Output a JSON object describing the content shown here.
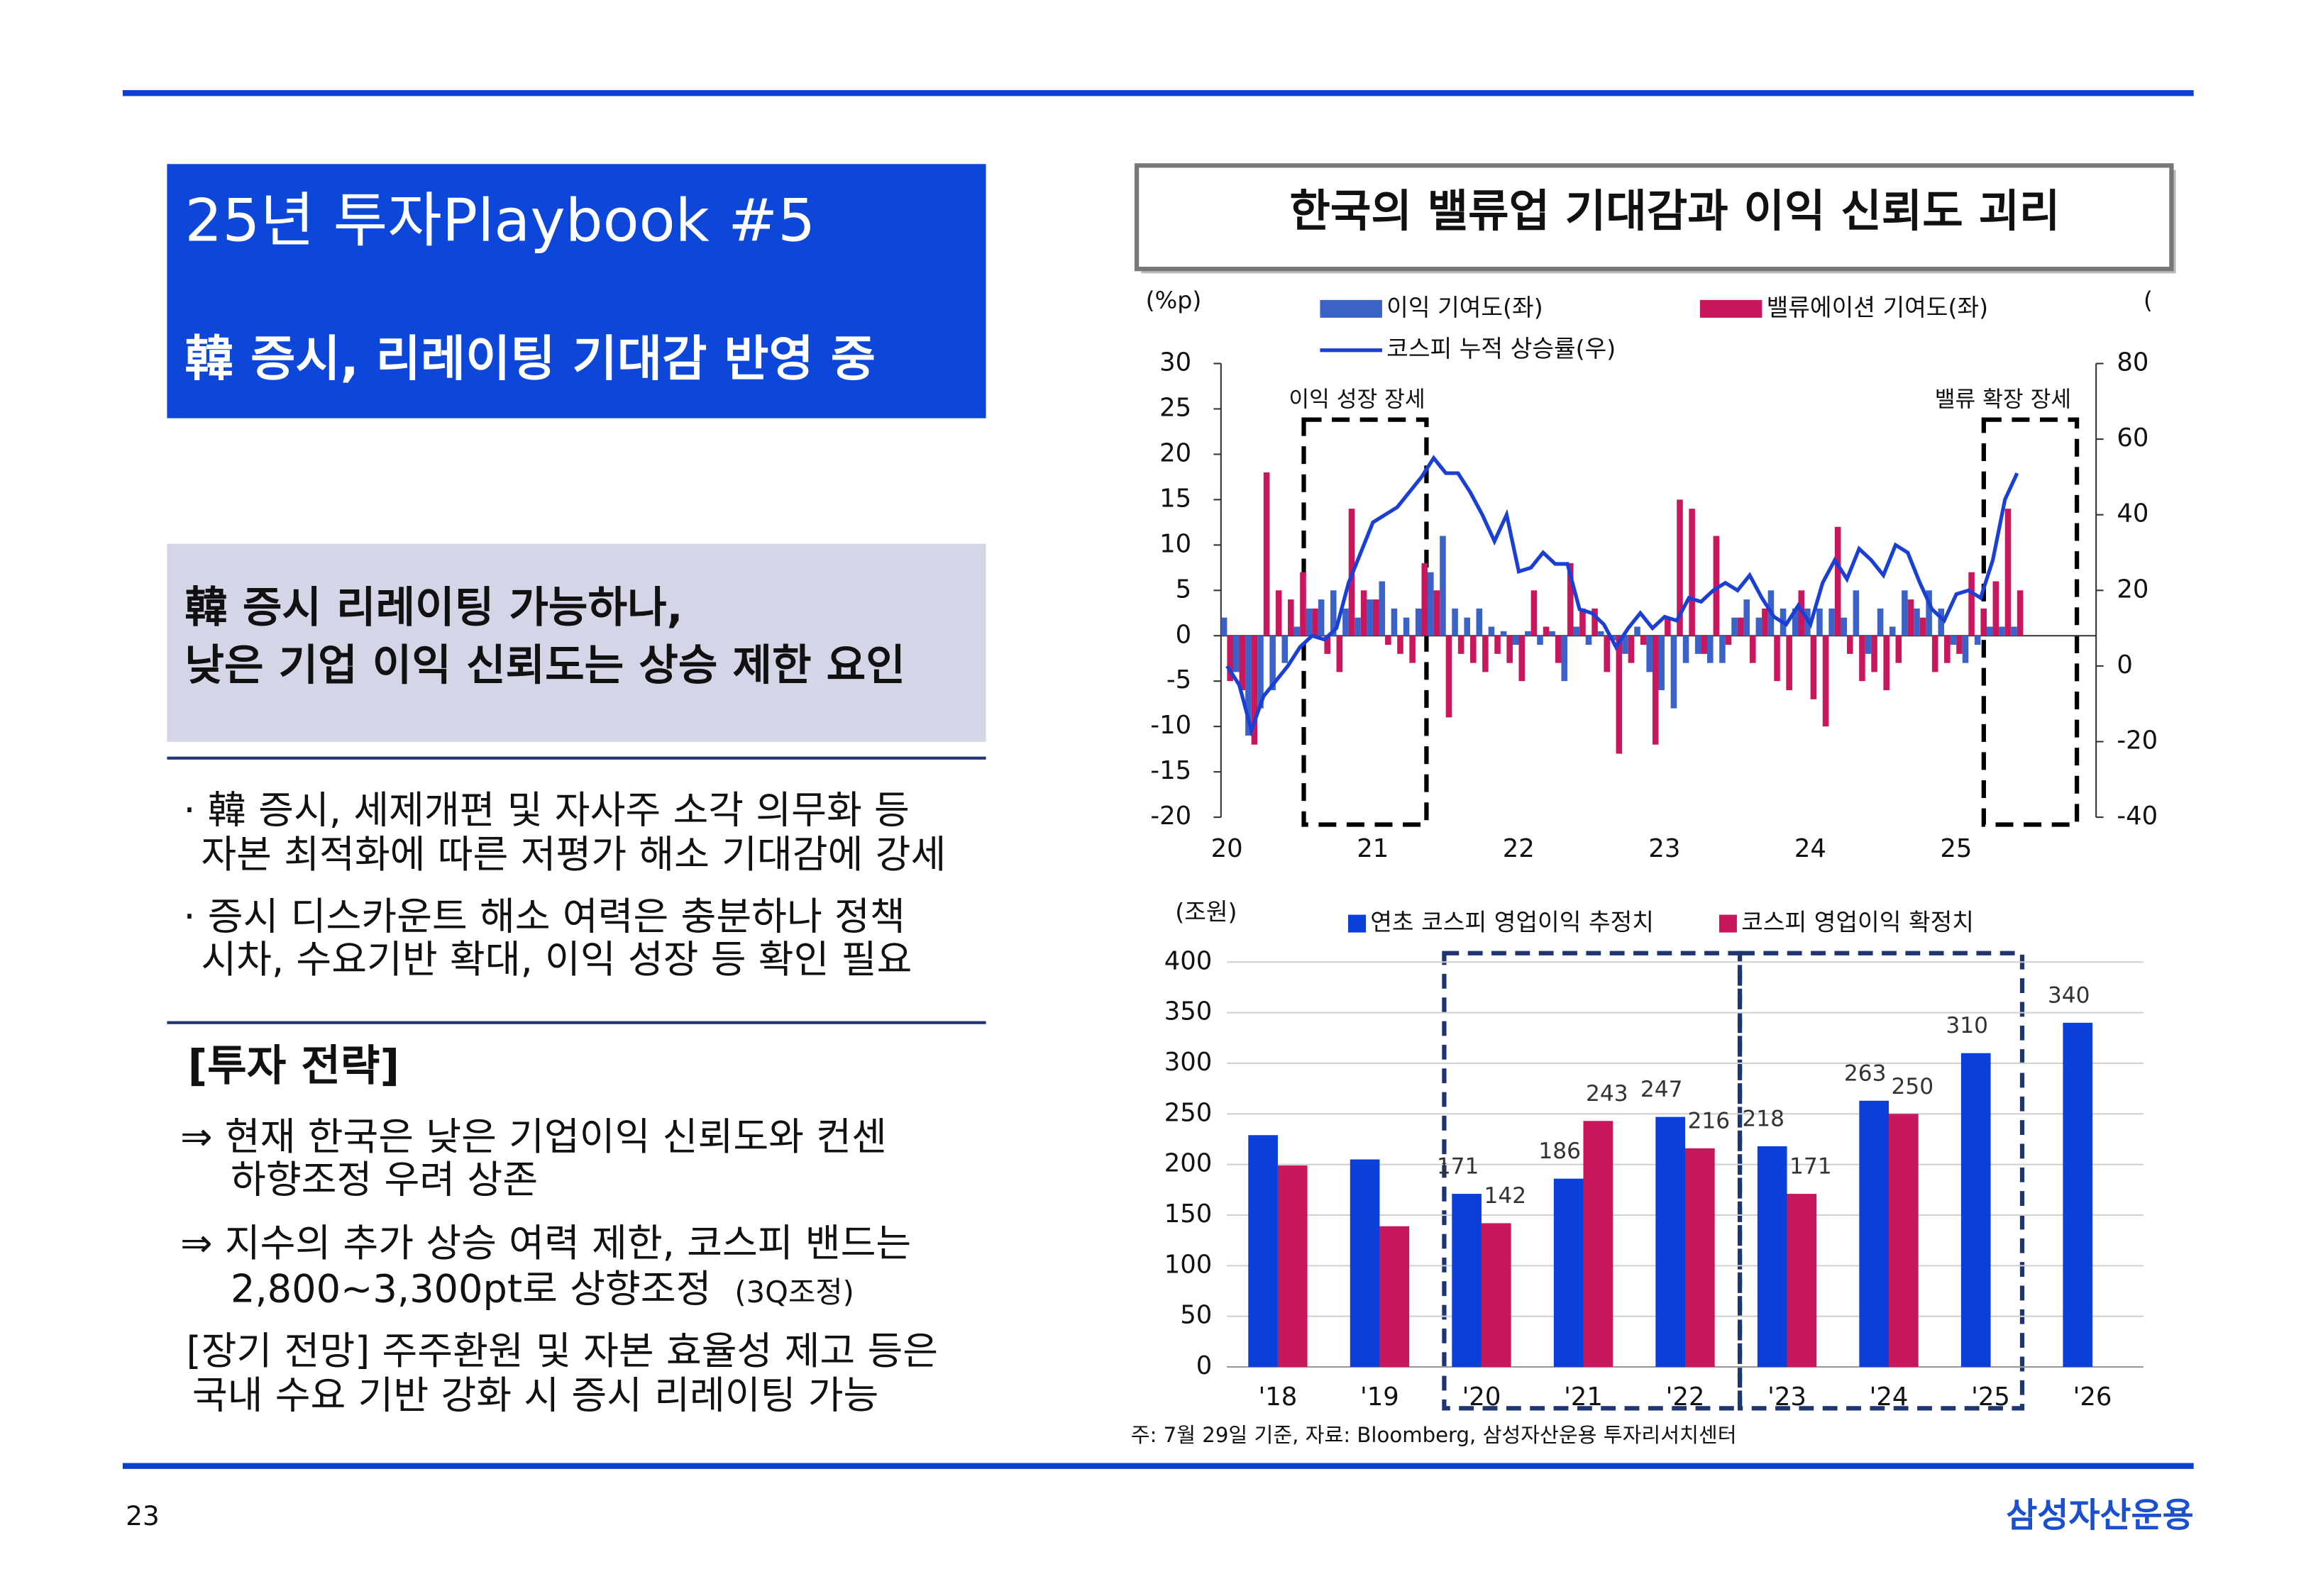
{
  "header": {
    "title": "25년 투자Playbook #5",
    "subtitle": "韓 증시, 리레이팅 기대감 반영 중"
  },
  "summary": [
    "韓 증시 리레이팅 가능하나,",
    "낮은 기업 이익 신뢰도는 상승 제한 요인"
  ],
  "bullets": [
    [
      "· 韓 증시, 세제개편 및 자사주 소각 의무화 등",
      "자본 최적화에 따른 저평가 해소 기대감에 강세"
    ],
    [
      "· 증시 디스카운트 해소 여력은 충분하나 정책",
      "시차, 수요기반 확대, 이익 성장 등 확인 필요"
    ]
  ],
  "strategy": {
    "heading": "[투자 전략]",
    "items": [
      [
        "⇒ 현재 한국은 낮은 기업이익 신뢰도와 컨센",
        "하향조정 우려 상존"
      ],
      [
        "⇒ 지수의 추가 상승 여력 제한, 코스피 밴드는",
        "2,800~3,300pt로 상향조정"
      ],
      [
        "[장기 전망] 주주환원 및 자본 효율성 제고 등은",
        "국내 수요 기반 강화 시 증시 리레이팅 가능"
      ]
    ],
    "note": "(3Q조정)"
  },
  "panel_title": "한국의 밸류업 기대감과 이익 신뢰도 괴리",
  "chart_data": [
    {
      "type": "bar_line",
      "y_label": "(%p)",
      "y2_label": "(",
      "categories": [
        "20",
        null,
        null,
        null,
        null,
        null,
        null,
        null,
        null,
        null,
        null,
        null,
        "21",
        null,
        null,
        null,
        null,
        null,
        null,
        null,
        null,
        null,
        null,
        null,
        "22",
        null,
        null,
        null,
        null,
        null,
        null,
        null,
        null,
        null,
        null,
        null,
        "23",
        null,
        null,
        null,
        null,
        null,
        null,
        null,
        null,
        null,
        null,
        null,
        "24",
        null,
        null,
        null,
        null,
        null,
        null,
        null,
        null,
        null,
        null,
        null,
        "25",
        null,
        null,
        null,
        null,
        null
      ],
      "series": [
        {
          "name": "이익 기여도(좌)",
          "type": "bar",
          "color": "#3b62c9",
          "values": [
            2,
            -4,
            -11,
            -8,
            -6,
            -3,
            1,
            3,
            4,
            5,
            3,
            2,
            4,
            6,
            3,
            2,
            3,
            7,
            11,
            3,
            2,
            3,
            1,
            0.5,
            -1,
            0.5,
            -1,
            0.5,
            -5,
            1,
            -1,
            0.5,
            -0.5,
            -2,
            1,
            -4,
            -6,
            -8,
            -3,
            -2,
            -3,
            -3,
            2,
            4,
            2,
            5,
            3,
            3,
            3,
            3,
            3,
            2,
            5,
            -2,
            3,
            1,
            5,
            3,
            5,
            3,
            -1,
            -3,
            -1,
            1,
            1,
            1
          ]
        },
        {
          "name": "밸류에이션 기여도(좌)",
          "type": "bar",
          "color": "#c8175d",
          "values": [
            -5,
            -6,
            -12,
            18,
            5,
            4,
            7,
            3,
            -2,
            -4,
            14,
            5,
            4,
            -1,
            -2,
            -3,
            8,
            5,
            -9,
            -2,
            -3,
            -4,
            -2,
            -3,
            -5,
            5,
            1,
            -3,
            8,
            3,
            3,
            -4,
            -13,
            -3,
            -1,
            -12,
            2,
            15,
            14,
            -2,
            11,
            -1,
            2,
            -3,
            3,
            -5,
            -6,
            5,
            -7,
            -10,
            12,
            -2,
            -5,
            -4,
            -6,
            -3,
            4,
            2,
            -4,
            -3,
            -2,
            7,
            3,
            6,
            14,
            5
          ]
        },
        {
          "name": "코스피 누적 상승률(우)",
          "type": "line",
          "axis": "y2",
          "color": "#1a3fd6",
          "values": [
            0,
            -5,
            -17,
            -8,
            -4,
            0,
            5,
            8,
            7,
            10,
            22,
            30,
            38,
            40,
            42,
            46,
            50,
            55,
            51,
            51,
            46,
            40,
            33,
            40,
            25,
            26,
            30,
            27,
            27,
            15,
            14,
            11,
            5,
            10,
            14,
            10,
            13,
            12,
            18,
            17,
            20,
            22,
            20,
            24,
            18,
            13,
            11,
            16,
            11,
            22,
            28,
            23,
            31,
            28,
            24,
            32,
            30,
            22,
            15,
            12,
            19,
            20,
            18,
            28,
            44,
            51
          ]
        }
      ],
      "ylim": [
        -20,
        30
      ],
      "yticks": [
        -20,
        -15,
        -10,
        -5,
        0,
        5,
        10,
        15,
        20,
        25,
        30
      ],
      "y2lim": [
        -40,
        80
      ],
      "y2ticks": [
        -40,
        -20,
        0,
        20,
        40,
        60,
        80
      ],
      "annotations": [
        "이익 성장 장세",
        "밸류 확장 장세"
      ]
    },
    {
      "type": "bar",
      "y_label": "(조원)",
      "categories": [
        "'18",
        "'19",
        "'20",
        "'21",
        "'22",
        "'23",
        "'24",
        "'25",
        "'26"
      ],
      "series": [
        {
          "name": "연초 코스피 영업이익 추정치",
          "color": "#0b3fd9",
          "values": [
            229,
            205,
            171,
            186,
            247,
            218,
            263,
            310,
            340
          ],
          "value_labels": [
            null,
            null,
            "171",
            "186",
            "247",
            "218",
            "263",
            "310",
            "340"
          ]
        },
        {
          "name": "코스피 영업이익 확정치",
          "color": "#c8175d",
          "values": [
            199,
            139,
            142,
            243,
            216,
            171,
            250,
            null,
            null
          ],
          "value_labels": [
            null,
            null,
            "142",
            "243",
            "216",
            "171",
            "250",
            null,
            null
          ]
        }
      ],
      "ylim": [
        0,
        400
      ],
      "yticks": [
        0,
        50,
        100,
        150,
        200,
        250,
        300,
        350,
        400
      ],
      "grid": true
    }
  ],
  "source": "주: 7월 29일 기준, 자료: Bloomberg, 삼성자산운용 투자리서치센터",
  "page_number": "23",
  "brand": "삼성자산운용"
}
